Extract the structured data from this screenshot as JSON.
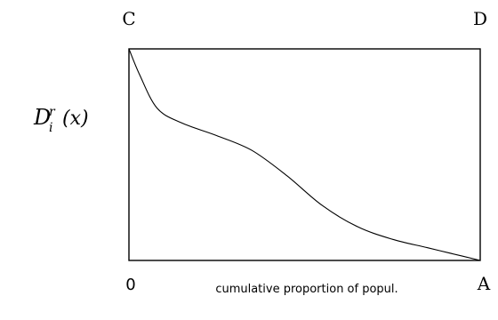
{
  "chart_data": {
    "type": "line",
    "title": "",
    "xlabel": "cumulative proportion of popul.",
    "ylabel": "D_i^r (x)",
    "ylabel_parts": {
      "base": "D",
      "sub": "i",
      "sup": "r",
      "arg": "(x)"
    },
    "corner_labels": {
      "top_left": "C",
      "top_right": "D",
      "bottom_left": "0",
      "bottom_right": "A"
    },
    "xlim": [
      0,
      1
    ],
    "ylim": [
      0,
      1
    ],
    "grid": false,
    "legend": "none",
    "series": [
      {
        "x": [
          0,
          0.03,
          0.08,
          0.15,
          0.25,
          0.35,
          0.45,
          0.55,
          0.65,
          0.75,
          0.85,
          0.95,
          1.0
        ],
        "y": [
          1.0,
          0.88,
          0.72,
          0.65,
          0.59,
          0.52,
          0.4,
          0.26,
          0.16,
          0.1,
          0.06,
          0.02,
          0.0
        ]
      }
    ]
  }
}
